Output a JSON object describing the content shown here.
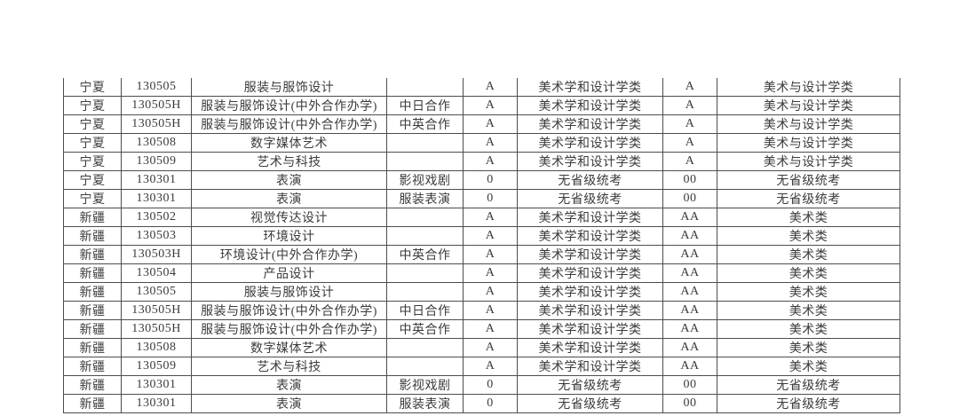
{
  "colors": {
    "page_background": "#ffffff",
    "table_text": "#3b3b3b",
    "table_border": "#4d4d4d"
  },
  "table": {
    "rows": [
      [
        "宁夏",
        "130505",
        "服装与服饰设计",
        "",
        "A",
        "美术学和设计学类",
        "A",
        "美术与设计学类"
      ],
      [
        "宁夏",
        "130505H",
        "服装与服饰设计(中外合作办学)",
        "中日合作",
        "A",
        "美术学和设计学类",
        "A",
        "美术与设计学类"
      ],
      [
        "宁夏",
        "130505H",
        "服装与服饰设计(中外合作办学)",
        "中英合作",
        "A",
        "美术学和设计学类",
        "A",
        "美术与设计学类"
      ],
      [
        "宁夏",
        "130508",
        "数字媒体艺术",
        "",
        "A",
        "美术学和设计学类",
        "A",
        "美术与设计学类"
      ],
      [
        "宁夏",
        "130509",
        "艺术与科技",
        "",
        "A",
        "美术学和设计学类",
        "A",
        "美术与设计学类"
      ],
      [
        "宁夏",
        "130301",
        "表演",
        "影视戏剧",
        "0",
        "无省级统考",
        "00",
        "无省级统考"
      ],
      [
        "宁夏",
        "130301",
        "表演",
        "服装表演",
        "0",
        "无省级统考",
        "00",
        "无省级统考"
      ],
      [
        "新疆",
        "130502",
        "视觉传达设计",
        "",
        "A",
        "美术学和设计学类",
        "AA",
        "美术类"
      ],
      [
        "新疆",
        "130503",
        "环境设计",
        "",
        "A",
        "美术学和设计学类",
        "AA",
        "美术类"
      ],
      [
        "新疆",
        "130503H",
        "环境设计(中外合作办学)",
        "中英合作",
        "A",
        "美术学和设计学类",
        "AA",
        "美术类"
      ],
      [
        "新疆",
        "130504",
        "产品设计",
        "",
        "A",
        "美术学和设计学类",
        "AA",
        "美术类"
      ],
      [
        "新疆",
        "130505",
        "服装与服饰设计",
        "",
        "A",
        "美术学和设计学类",
        "AA",
        "美术类"
      ],
      [
        "新疆",
        "130505H",
        "服装与服饰设计(中外合作办学)",
        "中日合作",
        "A",
        "美术学和设计学类",
        "AA",
        "美术类"
      ],
      [
        "新疆",
        "130505H",
        "服装与服饰设计(中外合作办学)",
        "中英合作",
        "A",
        "美术学和设计学类",
        "AA",
        "美术类"
      ],
      [
        "新疆",
        "130508",
        "数字媒体艺术",
        "",
        "A",
        "美术学和设计学类",
        "AA",
        "美术类"
      ],
      [
        "新疆",
        "130509",
        "艺术与科技",
        "",
        "A",
        "美术学和设计学类",
        "AA",
        "美术类"
      ],
      [
        "新疆",
        "130301",
        "表演",
        "影视戏剧",
        "0",
        "无省级统考",
        "00",
        "无省级统考"
      ],
      [
        "新疆",
        "130301",
        "表演",
        "服装表演",
        "0",
        "无省级统考",
        "00",
        "无省级统考"
      ]
    ]
  }
}
